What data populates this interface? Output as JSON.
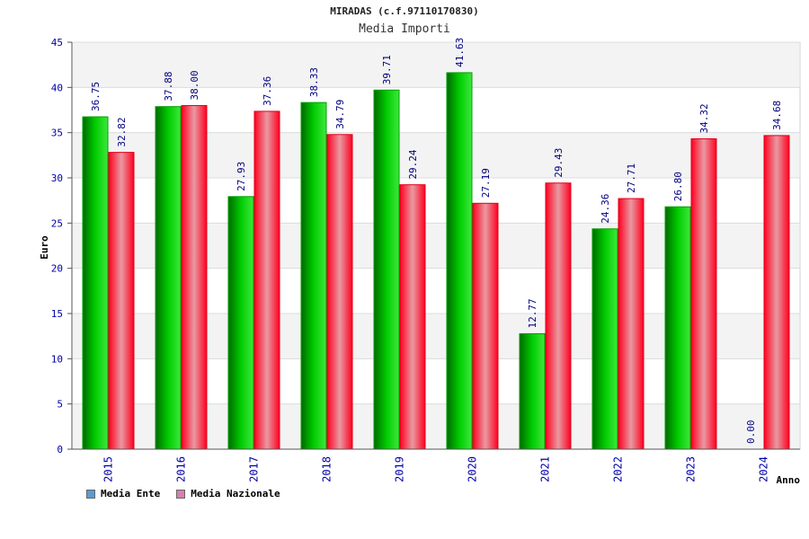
{
  "chart_data": {
    "type": "bar",
    "title": "MIRADAS (c.f.97110170830)",
    "subtitle": "Media Importi",
    "xlabel": "Anno",
    "ylabel": "Euro",
    "ylim": [
      0,
      45
    ],
    "yticks": [
      0,
      5,
      10,
      15,
      20,
      25,
      30,
      35,
      40,
      45
    ],
    "grid": true,
    "legend_position": "bottom-left",
    "categories": [
      "2015",
      "2016",
      "2017",
      "2018",
      "2019",
      "2020",
      "2021",
      "2022",
      "2023",
      "2024"
    ],
    "series": [
      {
        "name": "Media Ente",
        "color": "#00a800",
        "legend_color": "#5b9bd5",
        "values": [
          36.75,
          37.88,
          27.93,
          38.33,
          39.71,
          41.63,
          12.77,
          24.36,
          26.8,
          0.0
        ],
        "labels": [
          "36.75",
          "37.88",
          "27.93",
          "38.33",
          "39.71",
          "41.63",
          "12.77",
          "24.36",
          "26.80",
          "0.00"
        ]
      },
      {
        "name": "Media Nazionale",
        "color": "#e8001c",
        "legend_color": "#d97fb0",
        "values": [
          32.82,
          38.0,
          37.36,
          34.79,
          29.24,
          27.19,
          29.43,
          27.71,
          34.32,
          34.68
        ],
        "labels": [
          "32.82",
          "38.00",
          "37.36",
          "34.79",
          "29.24",
          "27.19",
          "29.43",
          "27.71",
          "34.32",
          "34.68"
        ]
      }
    ]
  }
}
